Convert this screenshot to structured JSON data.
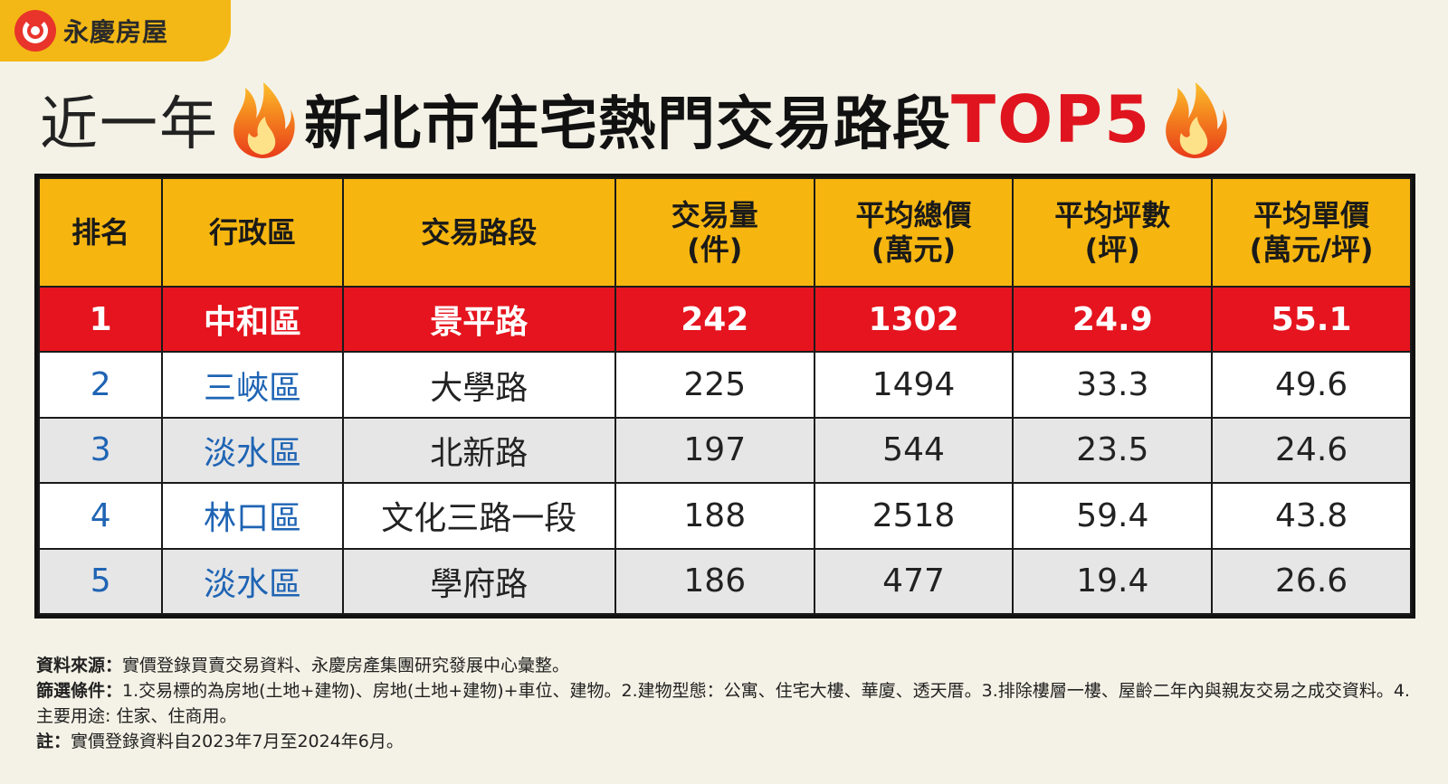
{
  "brand": {
    "name": "永慶房屋"
  },
  "title": {
    "prefix": "近一年",
    "main": "新北市住宅熱門交易路段",
    "suffix": "TOP5"
  },
  "colors": {
    "header_bg": "#f7b60f",
    "highlight_bg": "#e5141e",
    "district_text": "#1f64b4",
    "title_red": "#e0141e",
    "alt_row_bg": "#e6e6e6"
  },
  "table": {
    "headers": [
      {
        "line1": "排名",
        "line2": ""
      },
      {
        "line1": "行政區",
        "line2": ""
      },
      {
        "line1": "交易路段",
        "line2": ""
      },
      {
        "line1": "交易量",
        "line2": "(件)"
      },
      {
        "line1": "平均總價",
        "line2": "(萬元)"
      },
      {
        "line1": "平均坪數",
        "line2": "(坪)"
      },
      {
        "line1": "平均單價",
        "line2": "(萬元/坪)"
      }
    ],
    "rows": [
      {
        "rank": "1",
        "district": "中和區",
        "road": "景平路",
        "volume": "242",
        "avg_total": "1302",
        "avg_area": "24.9",
        "avg_unit": "55.1"
      },
      {
        "rank": "2",
        "district": "三峽區",
        "road": "大學路",
        "volume": "225",
        "avg_total": "1494",
        "avg_area": "33.3",
        "avg_unit": "49.6"
      },
      {
        "rank": "3",
        "district": "淡水區",
        "road": "北新路",
        "volume": "197",
        "avg_total": "544",
        "avg_area": "23.5",
        "avg_unit": "24.6"
      },
      {
        "rank": "4",
        "district": "林口區",
        "road": "文化三路一段",
        "volume": "188",
        "avg_total": "2518",
        "avg_area": "59.4",
        "avg_unit": "43.8"
      },
      {
        "rank": "5",
        "district": "淡水區",
        "road": "學府路",
        "volume": "186",
        "avg_total": "477",
        "avg_area": "19.4",
        "avg_unit": "26.6"
      }
    ]
  },
  "notes": {
    "source_label": "資料來源：",
    "source_text": "實價登錄買賣交易資料、永慶房產集團研究發展中心彙整。",
    "filter_label": "篩選條件：",
    "filter_text": "1.交易標的為房地(土地+建物)、房地(土地+建物)+車位、建物。2.建物型態：公寓、住宅大樓、華廈、透天厝。3.排除樓層一樓、屋齡二年內與親友交易之成交資料。4.主要用途: 住家、住商用。",
    "note_label": "註：",
    "note_text": "實價登錄資料自2023年7月至2024年6月。"
  }
}
